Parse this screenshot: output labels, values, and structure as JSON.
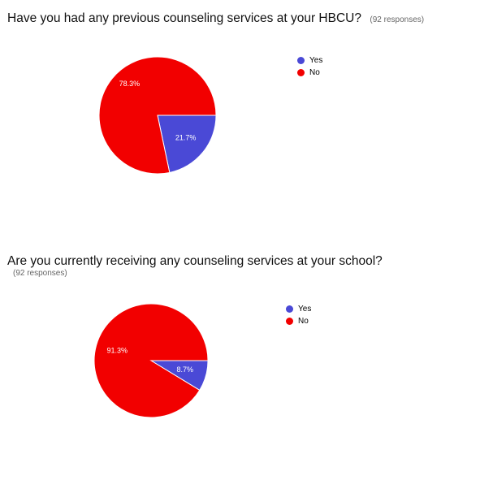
{
  "colors": {
    "yes": "#4a49d6",
    "no": "#f20000"
  },
  "chart_data": [
    {
      "type": "pie",
      "title": "Have you had any previous counseling services at your HBCU?",
      "subtitle": "(92 responses)",
      "legend": [
        "Yes",
        "No"
      ],
      "legend_position": "top-right",
      "slices": [
        {
          "label": "Yes",
          "value": 21.7,
          "display": "21.7%"
        },
        {
          "label": "No",
          "value": 78.3,
          "display": "78.3%"
        }
      ]
    },
    {
      "type": "pie",
      "title": "Are you currently receiving any counseling services at your school?",
      "subtitle": "(92 responses)",
      "legend": [
        "Yes",
        "No"
      ],
      "legend_position": "top-right",
      "slices": [
        {
          "label": "Yes",
          "value": 8.7,
          "display": "8.7%"
        },
        {
          "label": "No",
          "value": 91.3,
          "display": "91.3%"
        }
      ]
    }
  ]
}
